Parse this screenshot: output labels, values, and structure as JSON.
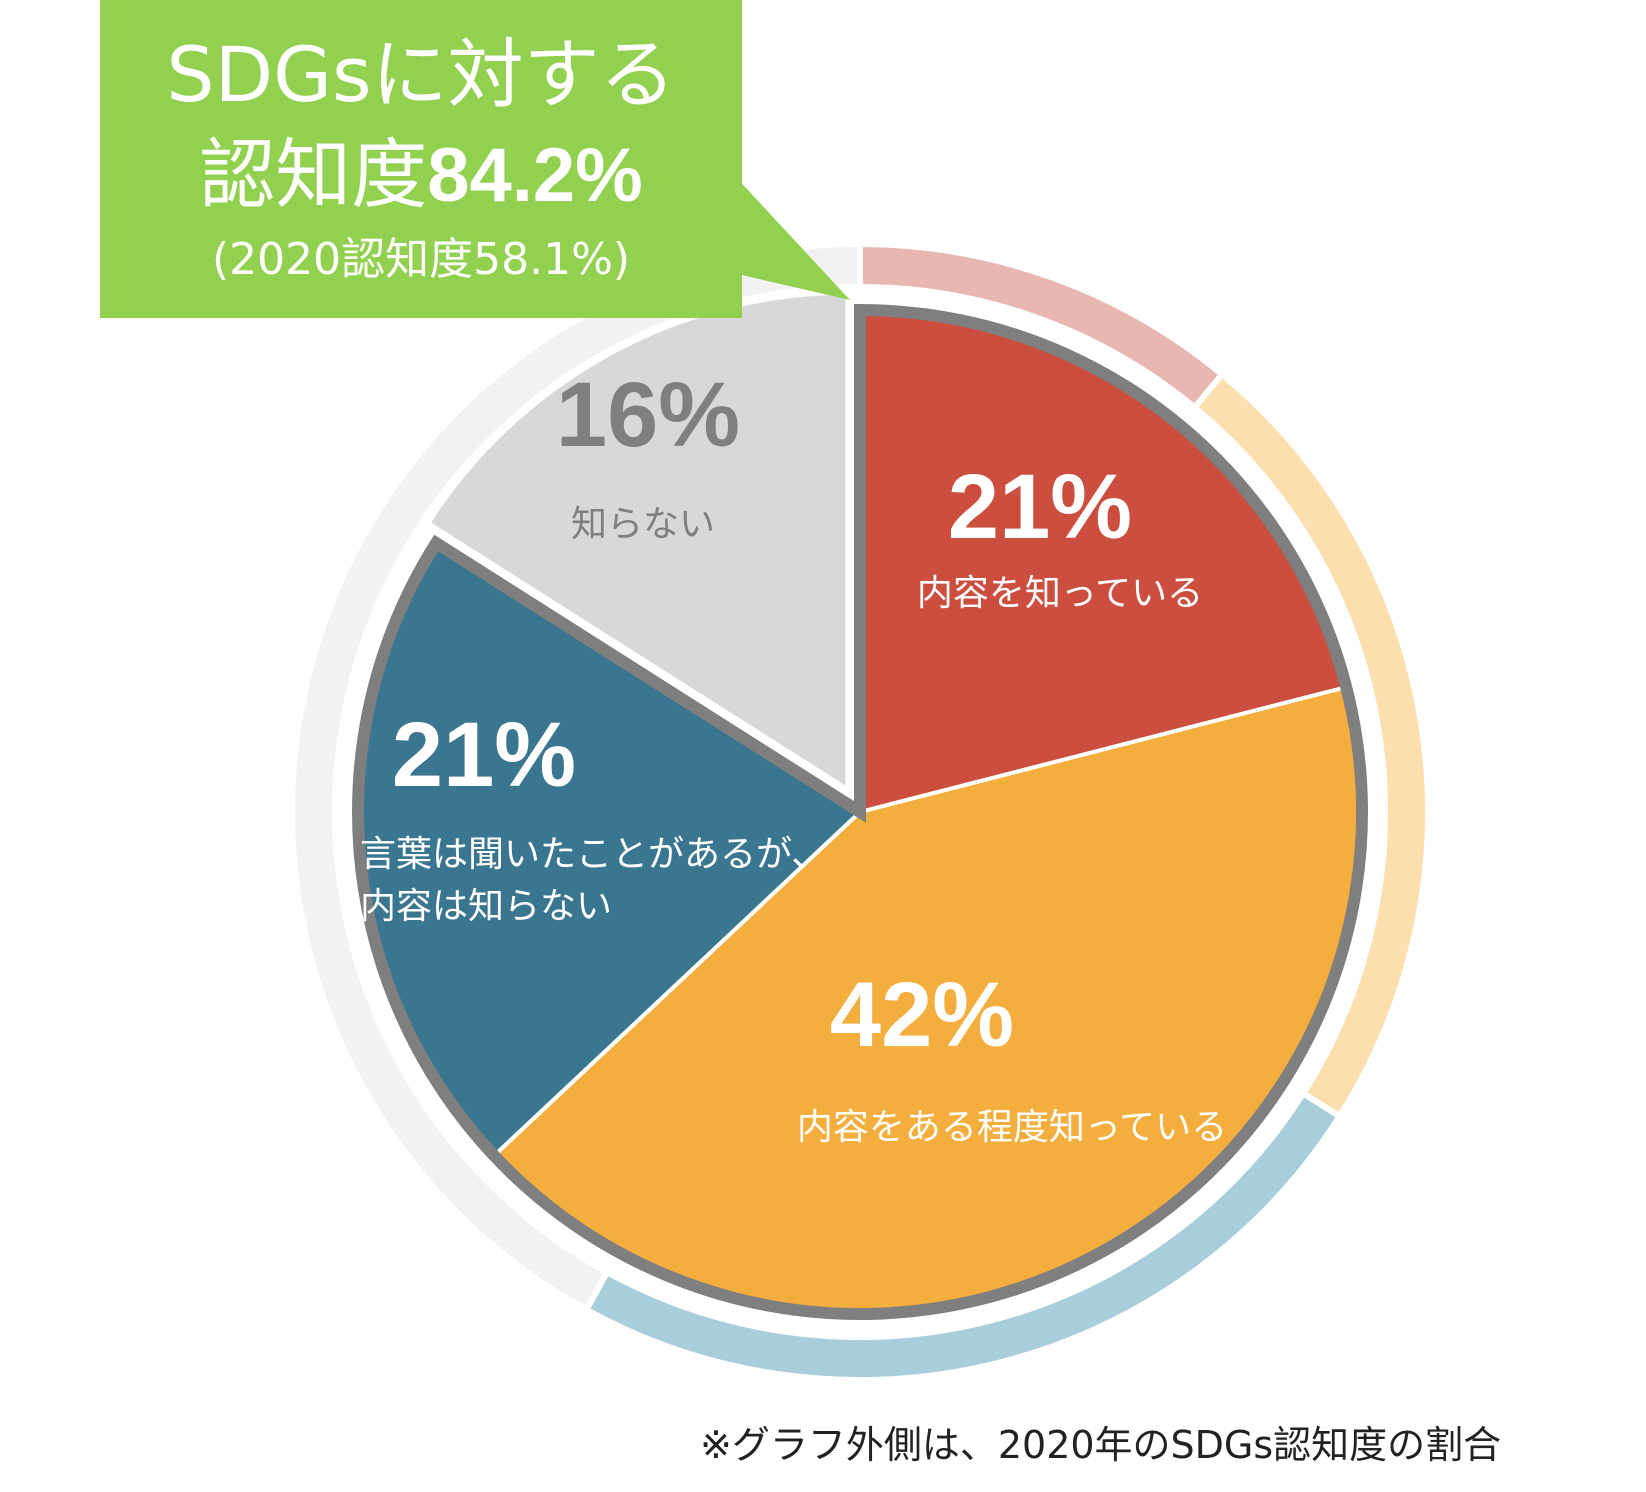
{
  "callout": {
    "line1": "SDGsに対する",
    "line2_prefix": "認知度",
    "line2_value": "84.2%",
    "line3": "(2020認知度58.1%)",
    "color": "#92d050"
  },
  "footnote": "※グラフ外側は、2020年のSDGs認知度の割合",
  "chart_data": {
    "type": "pie",
    "title": "",
    "inner": {
      "categories": [
        "内容を知っている",
        "内容をある程度知っている",
        "言葉は聞いたことがあるが、内容は知らない",
        "知らない"
      ],
      "values": [
        21,
        42,
        21,
        16
      ],
      "value_labels": [
        "21%",
        "42%",
        "21%",
        "16%"
      ],
      "colors": [
        "#cb4e3f",
        "#f4ae3d",
        "#3a768f",
        "#d8d8d8"
      ]
    },
    "outer": {
      "note": "2020",
      "values": [
        11,
        23,
        24,
        42
      ],
      "colors": [
        "#e9b7b1",
        "#fbdfae",
        "#a8cedb",
        "#f2f2f2"
      ]
    },
    "highlight_outline_color": "#7f7f7f"
  }
}
